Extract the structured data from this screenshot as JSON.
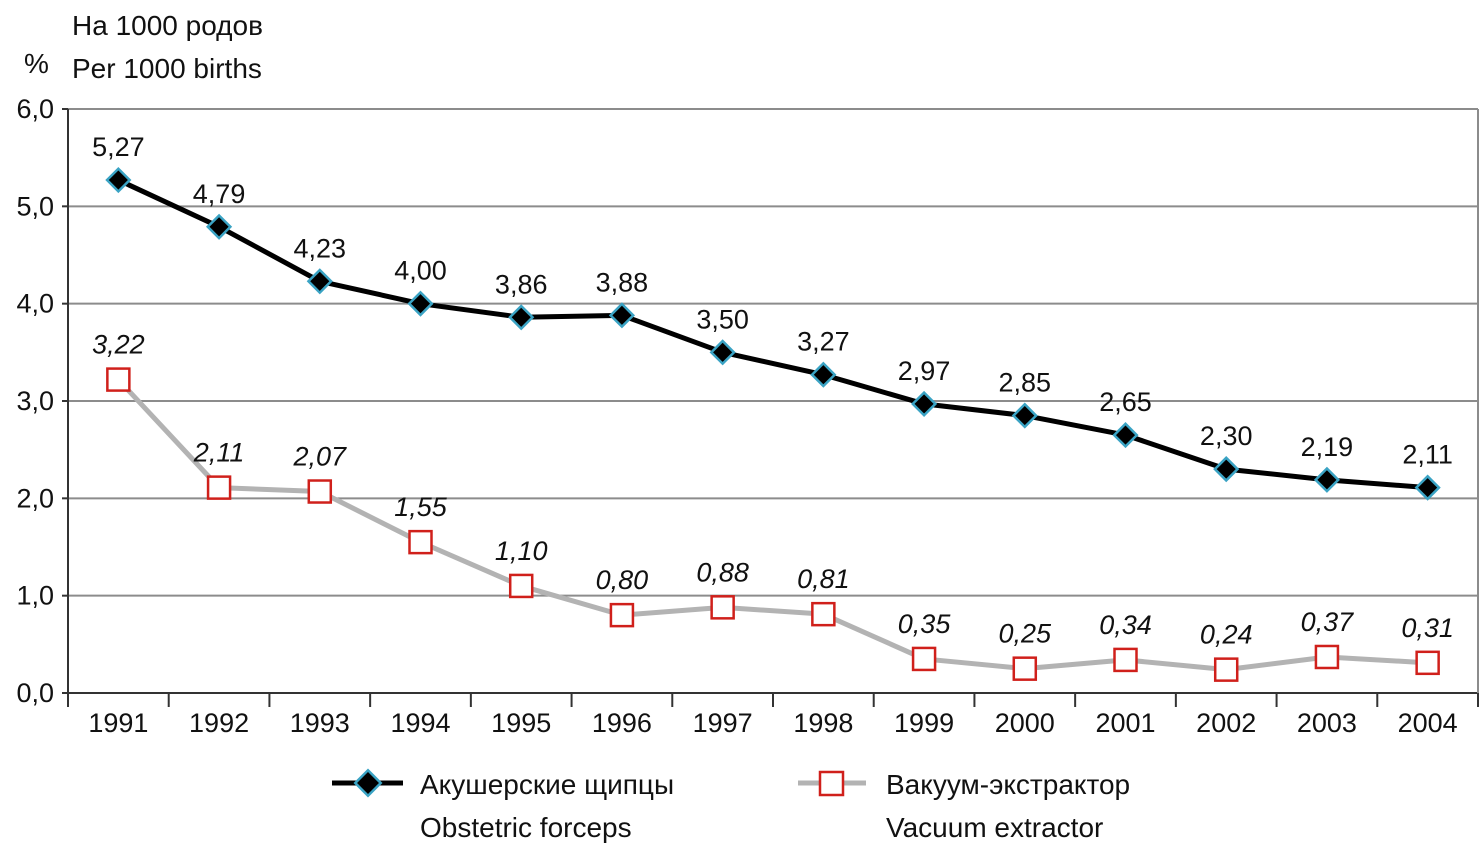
{
  "chart_data": {
    "type": "line",
    "ylabel_unit": "%",
    "ylabel_line1": "На 1000 родов",
    "ylabel_line2": "Per 1000 births",
    "ylim": [
      0,
      6
    ],
    "y_ticks": [
      "0,0",
      "1,0",
      "2,0",
      "3,0",
      "4,0",
      "5,0",
      "6,0"
    ],
    "y_tick_values": [
      0,
      1,
      2,
      3,
      4,
      5,
      6
    ],
    "grid": "horizontal",
    "categories": [
      "1991",
      "1992",
      "1993",
      "1994",
      "1995",
      "1996",
      "1997",
      "1998",
      "1999",
      "2000",
      "2001",
      "2002",
      "2003",
      "2004"
    ],
    "series": [
      {
        "name_line1": "Акушерские щипцы",
        "name_line2": "Obstetric forceps",
        "line_color": "#000000",
        "marker": "diamond",
        "marker_fill": "#000000",
        "marker_stroke": "#3aa3c4",
        "values": [
          5.27,
          4.79,
          4.23,
          4.0,
          3.86,
          3.88,
          3.5,
          3.27,
          2.97,
          2.85,
          2.65,
          2.3,
          2.19,
          2.11
        ],
        "labels": [
          "5,27",
          "4,79",
          "4,23",
          "4,00",
          "3,86",
          "3,88",
          "3,50",
          "3,27",
          "2,97",
          "2,85",
          "2,65",
          "2,30",
          "2,19",
          "2,11"
        ]
      },
      {
        "name_line1": "Вакуум-экстрактор",
        "name_line2": "Vacuum extractor",
        "line_color": "#b3b3b3",
        "marker": "square",
        "marker_fill": "#ffffff",
        "marker_stroke": "#d0201b",
        "values": [
          3.22,
          2.11,
          2.07,
          1.55,
          1.1,
          0.8,
          0.88,
          0.81,
          0.35,
          0.25,
          0.34,
          0.24,
          0.37,
          0.31
        ],
        "labels": [
          "3,22",
          "2,11",
          "2,07",
          "1,55",
          "1,10",
          "0,80",
          "0,88",
          "0,81",
          "0,35",
          "0,25",
          "0,34",
          "0,24",
          "0,37",
          "0,31"
        ]
      }
    ]
  }
}
